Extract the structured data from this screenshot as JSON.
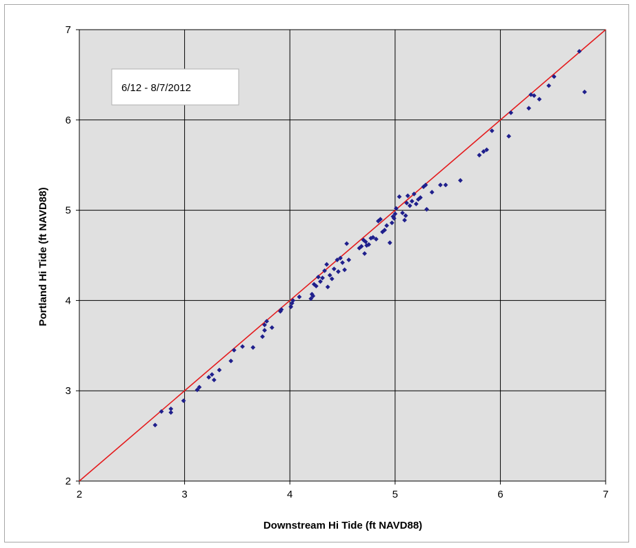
{
  "chart_data": {
    "type": "scatter",
    "title": "",
    "annotation": "6/12 - 8/7/2012",
    "xlabel": "Downstream Hi Tide (ft NAVD88)",
    "ylabel": "Portland Hi Tide (ft NAVD88)",
    "xlim": [
      2,
      7
    ],
    "ylim": [
      2,
      7
    ],
    "xticks": [
      "2",
      "3",
      "4",
      "5",
      "6",
      "7"
    ],
    "yticks": [
      "2",
      "3",
      "4",
      "5",
      "6",
      "7"
    ],
    "grid": true,
    "legend": "none",
    "colors": {
      "plot_background": "#e0e0e0",
      "gridline": "#000000",
      "marker": "#1f1f8c",
      "reference_line": "#e41a1c"
    },
    "reference_line": {
      "x": [
        2,
        7
      ],
      "y": [
        2,
        7
      ]
    },
    "series": [
      {
        "x": [
          2.72,
          2.78,
          2.87,
          2.87,
          2.99,
          3.12,
          3.14,
          3.23,
          3.26,
          3.28,
          3.33,
          3.44,
          3.47,
          3.55,
          3.65,
          3.74,
          3.76,
          3.76,
          3.78,
          3.83,
          3.91,
          3.92,
          4.01,
          4.02,
          4.03,
          4.09,
          4.2,
          4.21,
          4.22,
          4.23,
          4.25,
          4.27,
          4.29,
          4.31,
          4.33,
          4.35,
          4.36,
          4.38,
          4.4,
          4.42,
          4.45,
          4.46,
          4.48,
          4.5,
          4.52,
          4.54,
          4.56,
          4.66,
          4.68,
          4.7,
          4.71,
          4.72,
          4.73,
          4.75,
          4.77,
          4.79,
          4.82,
          4.84,
          4.86,
          4.88,
          4.9,
          4.92,
          4.95,
          4.97,
          4.98,
          4.99,
          5.0,
          5.01,
          5.04,
          5.07,
          5.09,
          5.1,
          5.11,
          5.12,
          5.14,
          5.16,
          5.18,
          5.2,
          5.22,
          5.24,
          5.27,
          5.29,
          5.3,
          5.35,
          5.43,
          5.48,
          5.62,
          5.8,
          5.84,
          5.87,
          5.92,
          6.08,
          6.1,
          6.27,
          6.29,
          6.32,
          6.37,
          6.46,
          6.51,
          6.75,
          6.8
        ],
        "y": [
          2.62,
          2.77,
          2.76,
          2.8,
          2.89,
          3.01,
          3.04,
          3.15,
          3.18,
          3.12,
          3.23,
          3.33,
          3.45,
          3.49,
          3.48,
          3.6,
          3.67,
          3.73,
          3.77,
          3.7,
          3.88,
          3.9,
          3.93,
          3.97,
          4.0,
          4.04,
          4.02,
          4.07,
          4.05,
          4.18,
          4.16,
          4.26,
          4.21,
          4.25,
          4.33,
          4.4,
          4.15,
          4.28,
          4.24,
          4.35,
          4.45,
          4.32,
          4.47,
          4.42,
          4.34,
          4.63,
          4.45,
          4.58,
          4.6,
          4.67,
          4.52,
          4.65,
          4.61,
          4.62,
          4.69,
          4.7,
          4.68,
          4.88,
          4.9,
          4.76,
          4.78,
          4.83,
          4.64,
          4.86,
          4.93,
          4.91,
          4.96,
          5.02,
          5.15,
          4.97,
          4.89,
          4.94,
          5.08,
          5.16,
          5.05,
          5.1,
          5.18,
          5.07,
          5.12,
          5.14,
          5.26,
          5.28,
          5.01,
          5.2,
          5.28,
          5.28,
          5.33,
          5.61,
          5.65,
          5.67,
          5.88,
          5.82,
          6.08,
          6.13,
          6.28,
          6.27,
          6.23,
          6.38,
          6.48,
          6.76,
          6.31
        ]
      }
    ]
  }
}
